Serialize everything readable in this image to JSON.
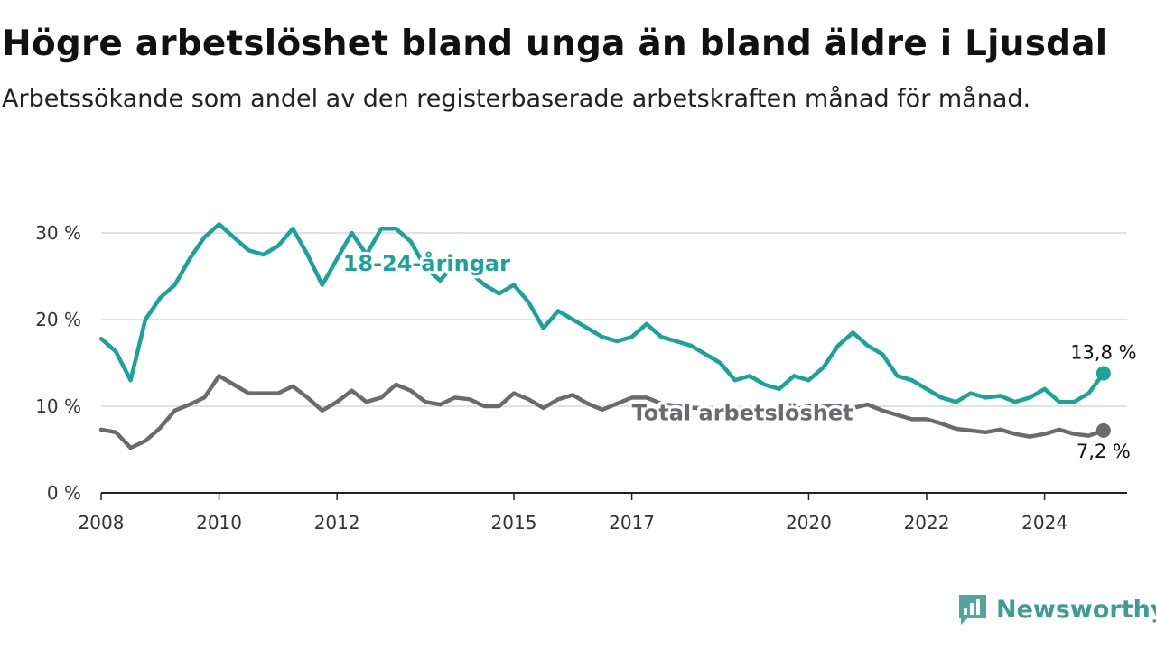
{
  "chart_data": {
    "type": "line",
    "title": "Högre arbetslöshet bland unga än bland äldre i Ljusdal",
    "subtitle": "Arbetssökande som andel av den registerbaserade arbetskraften månad för månad.",
    "ylim": [
      0,
      30
    ],
    "yticks": [
      0,
      10,
      20,
      30
    ],
    "ytick_labels": [
      "0 %",
      "10 %",
      "20 %",
      "30 %"
    ],
    "xlim": [
      2008,
      2025.4
    ],
    "xticks": [
      2008,
      2010,
      2012,
      2015,
      2017,
      2020,
      2022,
      2024
    ],
    "xtick_labels": [
      "2008",
      "2010",
      "2012",
      "2015",
      "2017",
      "2020",
      "2022",
      "2024"
    ],
    "grid": true,
    "legend": "inline labels",
    "series": [
      {
        "name": "18-24-åringar",
        "color": "#1aa39a",
        "x": [
          2008.0,
          2008.25,
          2008.5,
          2008.75,
          2009.0,
          2009.25,
          2009.5,
          2009.75,
          2010.0,
          2010.25,
          2010.5,
          2010.75,
          2011.0,
          2011.25,
          2011.5,
          2011.75,
          2012.0,
          2012.25,
          2012.5,
          2012.75,
          2013.0,
          2013.25,
          2013.5,
          2013.75,
          2014.0,
          2014.25,
          2014.5,
          2014.75,
          2015.0,
          2015.25,
          2015.5,
          2015.75,
          2016.0,
          2016.25,
          2016.5,
          2016.75,
          2017.0,
          2017.25,
          2017.5,
          2017.75,
          2018.0,
          2018.25,
          2018.5,
          2018.75,
          2019.0,
          2019.25,
          2019.5,
          2019.75,
          2020.0,
          2020.25,
          2020.5,
          2020.75,
          2021.0,
          2021.25,
          2021.5,
          2021.75,
          2022.0,
          2022.25,
          2022.5,
          2022.75,
          2023.0,
          2023.25,
          2023.5,
          2023.75,
          2024.0,
          2024.25,
          2024.5,
          2024.75,
          2025.0
        ],
        "values": [
          17.8,
          16.3,
          13.0,
          20.0,
          22.5,
          24.0,
          27.0,
          29.5,
          31.0,
          29.5,
          28.0,
          27.5,
          28.5,
          30.5,
          27.5,
          24.0,
          27.0,
          30.0,
          27.5,
          30.5,
          30.5,
          29.0,
          26.0,
          24.5,
          26.5,
          25.5,
          24.0,
          23.0,
          24.0,
          22.0,
          19.0,
          21.0,
          20.0,
          19.0,
          18.0,
          17.5,
          18.0,
          19.5,
          18.0,
          17.5,
          17.0,
          16.0,
          15.0,
          13.0,
          13.5,
          12.5,
          12.0,
          13.5,
          13.0,
          14.5,
          17.0,
          18.5,
          17.0,
          16.0,
          13.5,
          13.0,
          12.0,
          11.0,
          10.5,
          11.5,
          11.0,
          11.2,
          10.5,
          11.0,
          12.0,
          10.5,
          10.5,
          11.5,
          13.8
        ]
      },
      {
        "name": "Total arbetslöshet",
        "color": "#6b6a70",
        "x": [
          2008.0,
          2008.25,
          2008.5,
          2008.75,
          2009.0,
          2009.25,
          2009.5,
          2009.75,
          2010.0,
          2010.25,
          2010.5,
          2010.75,
          2011.0,
          2011.25,
          2011.5,
          2011.75,
          2012.0,
          2012.25,
          2012.5,
          2012.75,
          2013.0,
          2013.25,
          2013.5,
          2013.75,
          2014.0,
          2014.25,
          2014.5,
          2014.75,
          2015.0,
          2015.25,
          2015.5,
          2015.75,
          2016.0,
          2016.25,
          2016.5,
          2016.75,
          2017.0,
          2017.25,
          2017.5,
          2017.75,
          2018.0,
          2018.25,
          2018.5,
          2018.75,
          2019.0,
          2019.25,
          2019.5,
          2019.75,
          2020.0,
          2020.25,
          2020.5,
          2020.75,
          2021.0,
          2021.25,
          2021.5,
          2021.75,
          2022.0,
          2022.25,
          2022.5,
          2022.75,
          2023.0,
          2023.25,
          2023.5,
          2023.75,
          2024.0,
          2024.25,
          2024.5,
          2024.75,
          2025.0
        ],
        "values": [
          7.3,
          7.0,
          5.2,
          6.0,
          7.5,
          9.5,
          10.2,
          11.0,
          13.5,
          12.5,
          11.5,
          11.5,
          11.5,
          12.3,
          11.0,
          9.5,
          10.5,
          11.8,
          10.5,
          11.0,
          12.5,
          11.8,
          10.5,
          10.2,
          11.0,
          10.8,
          10.0,
          10.0,
          11.5,
          10.8,
          9.8,
          10.8,
          11.3,
          10.3,
          9.6,
          10.3,
          11.0,
          11.0,
          10.3,
          10.0,
          9.8,
          9.8,
          9.6,
          9.6,
          9.6,
          9.6,
          9.6,
          9.6,
          10.0,
          10.0,
          10.0,
          9.8,
          10.2,
          9.5,
          9.0,
          8.5,
          8.5,
          8.0,
          7.4,
          7.2,
          7.0,
          7.3,
          6.8,
          6.5,
          6.8,
          7.3,
          6.8,
          6.6,
          7.2
        ]
      }
    ],
    "end_labels": [
      "13,8 %",
      "7,2 %"
    ]
  },
  "brand": {
    "name": "Newsworthy",
    "color": "#3f9c93",
    "icon": "newsworthy-logo-icon"
  }
}
